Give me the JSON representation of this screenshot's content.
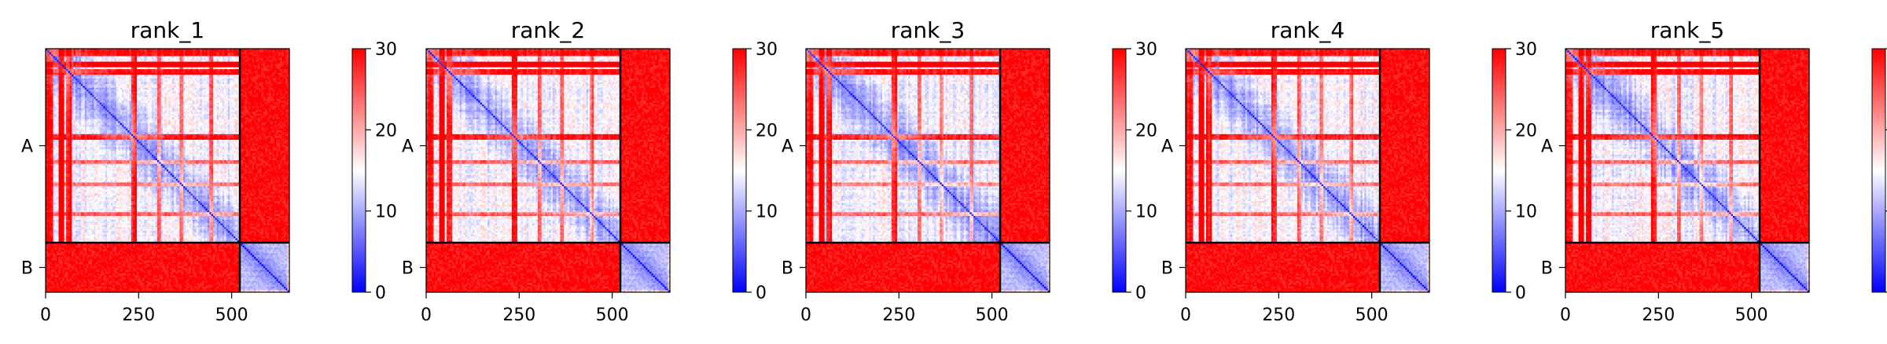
{
  "chart_data": {
    "type": "heatmap",
    "figure_kind": "predicted aligned error (PAE) matrices",
    "panels": [
      {
        "title": "rank_1"
      },
      {
        "title": "rank_2"
      },
      {
        "title": "rank_3"
      },
      {
        "title": "rank_4"
      },
      {
        "title": "rank_5"
      }
    ],
    "chains": [
      {
        "label": "A",
        "start": 0,
        "end": 522
      },
      {
        "label": "B",
        "start": 522,
        "end": 655
      }
    ],
    "total_residues": 655,
    "x_ticks": [
      {
        "value": 0,
        "label": "0"
      },
      {
        "value": 250,
        "label": "250"
      },
      {
        "value": 500,
        "label": "500"
      }
    ],
    "colorbar": {
      "range": [
        0,
        30
      ],
      "ticks": [
        {
          "value": 0,
          "label": "0"
        },
        {
          "value": 10,
          "label": "10"
        },
        {
          "value": 20,
          "label": "20"
        },
        {
          "value": 30,
          "label": "30"
        }
      ],
      "colors": {
        "low": "#0000ff",
        "mid": "#ffffff",
        "high": "#ff0000"
      }
    },
    "grid": false,
    "legend": "colorbar-right"
  }
}
